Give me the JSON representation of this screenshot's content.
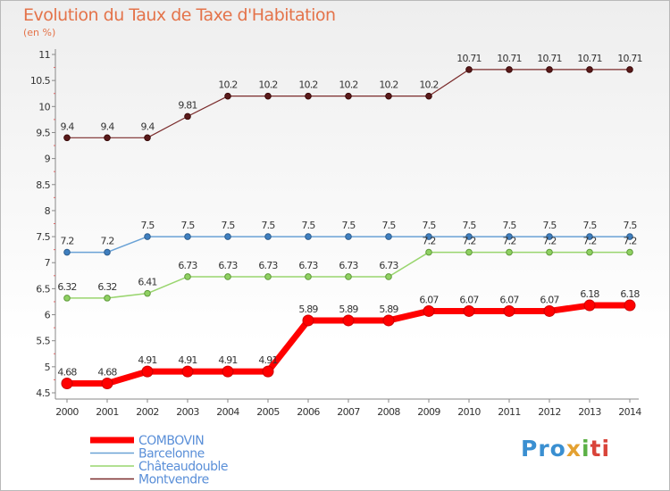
{
  "chart_data": {
    "type": "line",
    "title": "Evolution du Taux de Taxe d'Habitation",
    "unit_label": "(en %)",
    "x": [
      "2000",
      "2001",
      "2002",
      "2003",
      "2004",
      "2005",
      "2006",
      "2007",
      "2008",
      "2009",
      "2010",
      "2011",
      "2012",
      "2013",
      "2014"
    ],
    "ylim": [
      4.5,
      11
    ],
    "yticks": [
      "4.5",
      "5",
      "5.5",
      "6",
      "6.5",
      "7",
      "7.5",
      "8",
      "8.5",
      "9",
      "9.5",
      "10",
      "10.5",
      "11"
    ],
    "grid": false,
    "legend_position": "bottom-left",
    "series": [
      {
        "name": "COMBOVIN",
        "color": "#ff0000",
        "values": [
          4.68,
          4.68,
          4.91,
          4.91,
          4.91,
          4.91,
          5.89,
          5.89,
          5.89,
          6.07,
          6.07,
          6.07,
          6.07,
          6.18,
          6.18
        ],
        "labels": [
          "4.68",
          "4.68",
          "4.91",
          "4.91",
          "4.91",
          "4.91",
          "5.89",
          "5.89",
          "5.89",
          "6.07",
          "6.07",
          "6.07",
          "6.07",
          "6.18",
          "6.18"
        ]
      },
      {
        "name": "Barcelonne",
        "color": "#6aa2d6",
        "values": [
          7.2,
          7.2,
          7.5,
          7.5,
          7.5,
          7.5,
          7.5,
          7.5,
          7.5,
          7.5,
          7.5,
          7.5,
          7.5,
          7.5,
          7.5
        ],
        "labels": [
          "7.2",
          "7.2",
          "7.5",
          "7.5",
          "7.5",
          "7.5",
          "7.5",
          "7.5",
          "7.5",
          "7.5",
          "7.5",
          "7.5",
          "7.5",
          "7.5",
          "7.5"
        ]
      },
      {
        "name": "Châteaudouble",
        "color": "#99d56e",
        "values": [
          6.32,
          6.32,
          6.41,
          6.73,
          6.73,
          6.73,
          6.73,
          6.73,
          6.73,
          7.2,
          7.2,
          7.2,
          7.2,
          7.2,
          7.2
        ],
        "labels": [
          "6.32",
          "6.32",
          "6.41",
          "6.73",
          "6.73",
          "6.73",
          "6.73",
          "6.73",
          "6.73",
          "7.2",
          "7.2",
          "7.2",
          "7.2",
          "7.2",
          "7.2"
        ]
      },
      {
        "name": "Montvendre",
        "color": "#7a2b2b",
        "values": [
          9.4,
          9.4,
          9.4,
          9.81,
          10.2,
          10.2,
          10.2,
          10.2,
          10.2,
          10.2,
          10.71,
          10.71,
          10.71,
          10.71,
          10.71
        ],
        "labels": [
          "9.4",
          "9.4",
          "9.4",
          "9.81",
          "10.2",
          "10.2",
          "10.2",
          "10.2",
          "10.2",
          "10.2",
          "10.71",
          "10.71",
          "10.71",
          "10.71",
          "10.71"
        ]
      }
    ]
  },
  "logo": {
    "p1": "Pro",
    "p2": "x",
    "p3": "i",
    "p4": "ti"
  }
}
